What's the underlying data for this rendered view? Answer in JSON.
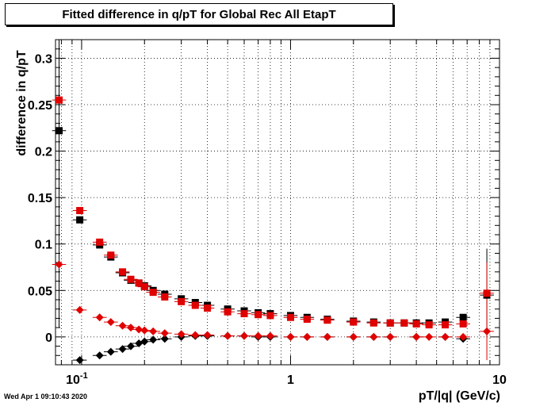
{
  "title": "Fitted difference in q/pT  for Global Rec All EtapT",
  "timestamp": "Wed Apr  1 09:10:43 2020",
  "chart_data": {
    "type": "scatter",
    "title": "Fitted difference in q/pT  for Global Rec All EtapT",
    "xlabel": "pT/|q| (GeV/c)",
    "ylabel": "difference in q/pT",
    "xscale": "log",
    "xlim": [
      0.075,
      10
    ],
    "ylim": [
      -0.03,
      0.32
    ],
    "grid": true,
    "x_tick_labels": [
      {
        "value": 0.1,
        "label": "10",
        "sup": "-1"
      },
      {
        "value": 1,
        "label": "1"
      },
      {
        "value": 10,
        "label": "10"
      }
    ],
    "y_tick_labels": [
      {
        "value": 0,
        "label": "0"
      },
      {
        "value": 0.05,
        "label": "0.05"
      },
      {
        "value": 0.1,
        "label": "0.1"
      },
      {
        "value": 0.15,
        "label": "0.15"
      },
      {
        "value": 0.2,
        "label": "0.2"
      },
      {
        "value": 0.25,
        "label": "0.25"
      },
      {
        "value": 0.3,
        "label": "0.3"
      }
    ],
    "series": [
      {
        "marker": "square",
        "color": "#000000",
        "points": [
          {
            "x": 0.078,
            "y": 0.222
          },
          {
            "x": 0.098,
            "y": 0.126
          },
          {
            "x": 0.122,
            "y": 0.099
          },
          {
            "x": 0.138,
            "y": 0.086
          },
          {
            "x": 0.157,
            "y": 0.069
          },
          {
            "x": 0.172,
            "y": 0.061
          },
          {
            "x": 0.188,
            "y": 0.058
          },
          {
            "x": 0.2,
            "y": 0.055
          },
          {
            "x": 0.22,
            "y": 0.05
          },
          {
            "x": 0.25,
            "y": 0.046
          },
          {
            "x": 0.3,
            "y": 0.041
          },
          {
            "x": 0.35,
            "y": 0.037
          },
          {
            "x": 0.4,
            "y": 0.034
          },
          {
            "x": 0.5,
            "y": 0.03
          },
          {
            "x": 0.6,
            "y": 0.028
          },
          {
            "x": 0.7,
            "y": 0.026
          },
          {
            "x": 0.8,
            "y": 0.025
          },
          {
            "x": 1.0,
            "y": 0.023
          },
          {
            "x": 1.2,
            "y": 0.021
          },
          {
            "x": 1.5,
            "y": 0.019
          },
          {
            "x": 2.0,
            "y": 0.017
          },
          {
            "x": 2.5,
            "y": 0.016
          },
          {
            "x": 3.0,
            "y": 0.015
          },
          {
            "x": 3.5,
            "y": 0.015
          },
          {
            "x": 4.0,
            "y": 0.015
          },
          {
            "x": 4.6,
            "y": 0.015
          },
          {
            "x": 5.5,
            "y": 0.016
          },
          {
            "x": 6.7,
            "y": 0.021
          },
          {
            "x": 8.7,
            "y": 0.045
          }
        ]
      },
      {
        "marker": "square",
        "color": "#e00000",
        "points": [
          {
            "x": 0.078,
            "y": 0.255
          },
          {
            "x": 0.098,
            "y": 0.136
          },
          {
            "x": 0.122,
            "y": 0.102
          },
          {
            "x": 0.138,
            "y": 0.088
          },
          {
            "x": 0.157,
            "y": 0.07
          },
          {
            "x": 0.172,
            "y": 0.062
          },
          {
            "x": 0.188,
            "y": 0.058
          },
          {
            "x": 0.2,
            "y": 0.054
          },
          {
            "x": 0.22,
            "y": 0.048
          },
          {
            "x": 0.25,
            "y": 0.043
          },
          {
            "x": 0.3,
            "y": 0.038
          },
          {
            "x": 0.35,
            "y": 0.034
          },
          {
            "x": 0.4,
            "y": 0.031
          },
          {
            "x": 0.5,
            "y": 0.027
          },
          {
            "x": 0.6,
            "y": 0.025
          },
          {
            "x": 0.7,
            "y": 0.024
          },
          {
            "x": 0.8,
            "y": 0.023
          },
          {
            "x": 1.0,
            "y": 0.021
          },
          {
            "x": 1.2,
            "y": 0.019
          },
          {
            "x": 1.5,
            "y": 0.018
          },
          {
            "x": 2.0,
            "y": 0.016
          },
          {
            "x": 2.5,
            "y": 0.015
          },
          {
            "x": 3.0,
            "y": 0.015
          },
          {
            "x": 3.5,
            "y": 0.015
          },
          {
            "x": 4.0,
            "y": 0.014
          },
          {
            "x": 4.6,
            "y": 0.013
          },
          {
            "x": 5.5,
            "y": 0.013
          },
          {
            "x": 6.7,
            "y": 0.014
          },
          {
            "x": 8.7,
            "y": 0.047
          }
        ]
      },
      {
        "marker": "diamond",
        "color": "#000000",
        "points": [
          {
            "x": 0.098,
            "y": -0.025
          },
          {
            "x": 0.122,
            "y": -0.02
          },
          {
            "x": 0.138,
            "y": -0.016
          },
          {
            "x": 0.157,
            "y": -0.013
          },
          {
            "x": 0.172,
            "y": -0.01
          },
          {
            "x": 0.188,
            "y": -0.007
          },
          {
            "x": 0.2,
            "y": -0.005
          },
          {
            "x": 0.22,
            "y": -0.003
          },
          {
            "x": 0.25,
            "y": -0.002
          },
          {
            "x": 0.3,
            "y": 0.0
          },
          {
            "x": 0.35,
            "y": 0.001
          },
          {
            "x": 0.4,
            "y": 0.001
          },
          {
            "x": 0.5,
            "y": 0.001
          },
          {
            "x": 0.6,
            "y": 0.001
          },
          {
            "x": 0.7,
            "y": 0.0
          },
          {
            "x": 0.8,
            "y": 0.0
          },
          {
            "x": 1.0,
            "y": 0.0
          },
          {
            "x": 1.2,
            "y": 0.0
          },
          {
            "x": 1.5,
            "y": 0.0
          },
          {
            "x": 2.0,
            "y": 0.0
          },
          {
            "x": 2.5,
            "y": 0.0
          },
          {
            "x": 3.0,
            "y": 0.0
          },
          {
            "x": 4.0,
            "y": 0.0
          },
          {
            "x": 5.5,
            "y": 0.0
          },
          {
            "x": 6.7,
            "y": -0.002
          }
        ]
      },
      {
        "marker": "diamond",
        "color": "#e00000",
        "points": [
          {
            "x": 0.078,
            "y": 0.078
          },
          {
            "x": 0.098,
            "y": 0.029
          },
          {
            "x": 0.122,
            "y": 0.021
          },
          {
            "x": 0.138,
            "y": 0.016
          },
          {
            "x": 0.157,
            "y": 0.012
          },
          {
            "x": 0.172,
            "y": 0.01
          },
          {
            "x": 0.188,
            "y": 0.008
          },
          {
            "x": 0.2,
            "y": 0.007
          },
          {
            "x": 0.22,
            "y": 0.006
          },
          {
            "x": 0.25,
            "y": 0.004
          },
          {
            "x": 0.3,
            "y": 0.003
          },
          {
            "x": 0.35,
            "y": 0.002
          },
          {
            "x": 0.4,
            "y": 0.002
          },
          {
            "x": 0.5,
            "y": 0.001
          },
          {
            "x": 0.6,
            "y": 0.001
          },
          {
            "x": 0.7,
            "y": 0.001
          },
          {
            "x": 0.8,
            "y": 0.001
          },
          {
            "x": 1.0,
            "y": 0.0
          },
          {
            "x": 1.2,
            "y": 0.0
          },
          {
            "x": 1.5,
            "y": 0.0
          },
          {
            "x": 2.0,
            "y": 0.0
          },
          {
            "x": 2.5,
            "y": 0.0
          },
          {
            "x": 3.0,
            "y": 0.0
          },
          {
            "x": 4.0,
            "y": 0.0
          },
          {
            "x": 4.6,
            "y": 0.0
          },
          {
            "x": 5.5,
            "y": 0.0
          },
          {
            "x": 6.7,
            "y": 0.0
          },
          {
            "x": 8.7,
            "y": 0.006
          }
        ]
      }
    ]
  }
}
